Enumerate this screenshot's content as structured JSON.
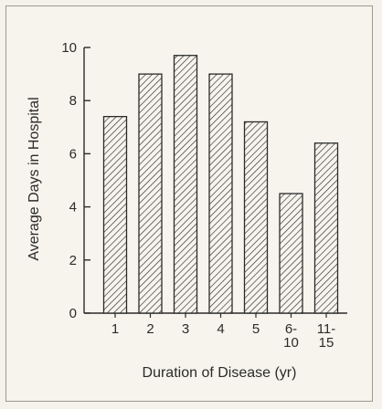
{
  "chart_data": {
    "type": "bar",
    "categories": [
      "1",
      "2",
      "3",
      "4",
      "5",
      "6-\n10",
      "11-\n15"
    ],
    "values": [
      7.4,
      9.0,
      9.7,
      9.0,
      7.2,
      4.5,
      6.4
    ],
    "xlabel": "Duration of Disease (yr)",
    "ylabel": "Average Days in Hospital",
    "ylim": [
      0,
      10
    ],
    "yticks": [
      0,
      2,
      4,
      6,
      8,
      10
    ],
    "bar_fill": "diagonal-hatch",
    "colors": {
      "ink": "#2b2b2b",
      "background": "#f6f4ec",
      "frame": "#9a9a92"
    }
  }
}
